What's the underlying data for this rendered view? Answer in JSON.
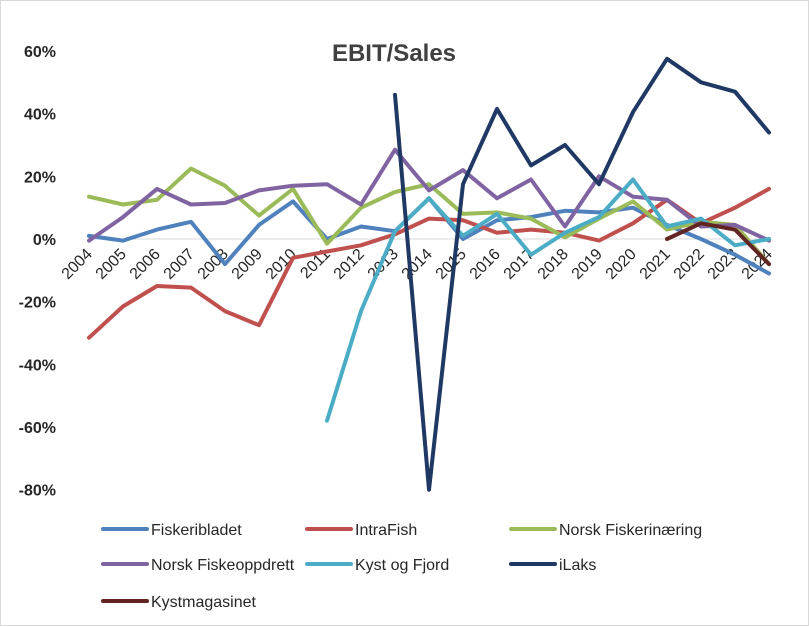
{
  "chart_data": {
    "type": "line",
    "title": "EBIT/Sales",
    "xlabel": "",
    "ylabel": "",
    "x": [
      "2004",
      "2005",
      "2006",
      "2007",
      "2008",
      "2009",
      "2010",
      "2011",
      "2012",
      "2013",
      "2014",
      "2015",
      "2016",
      "2017",
      "2018",
      "2019",
      "2020",
      "2021",
      "2022",
      "2023",
      "2024"
    ],
    "y_ticks": [
      "60%",
      "40%",
      "20%",
      "0%",
      "-20%",
      "-40%",
      "-60%",
      "-80%"
    ],
    "y_tick_values": [
      60,
      40,
      20,
      0,
      -20,
      -40,
      -60,
      -80
    ],
    "ylim": [
      -80,
      60
    ],
    "y_unit": "%",
    "grid": false,
    "legend_position": "bottom",
    "series": [
      {
        "name": "Fiskeribladet",
        "color": "#4f81bd",
        "values": [
          1,
          -0.5,
          3,
          5.5,
          -8,
          4.5,
          12,
          0,
          4,
          2.5,
          13,
          0,
          6,
          7,
          9,
          8.5,
          10,
          4.5,
          0,
          -5,
          -11
        ]
      },
      {
        "name": "IntraFish",
        "color": "#c0504d",
        "values": [
          -31.5,
          -21.5,
          -15,
          -15.5,
          -23,
          -27.5,
          -6,
          -4,
          -2,
          1.5,
          6.5,
          6,
          2,
          3,
          2,
          -0.5,
          5,
          12.5,
          5,
          10,
          16
        ]
      },
      {
        "name": "Norsk Fiskerinæring",
        "color": "#9bbb59",
        "values": [
          13.5,
          11,
          12.5,
          22.5,
          17,
          7.5,
          16,
          -1.5,
          10,
          15,
          17.5,
          8,
          8.5,
          6.5,
          0.5,
          6.5,
          12,
          3,
          5.5,
          4.5,
          -8
        ]
      },
      {
        "name": "Norsk Fiskeoppdrett",
        "color": "#8064a2",
        "values": [
          -0.5,
          7,
          16,
          11,
          11.5,
          15.5,
          17,
          17.5,
          11,
          28.5,
          15.5,
          22,
          13,
          19,
          4,
          20,
          13.5,
          12.5,
          4,
          4.5,
          -0.5
        ]
      },
      {
        "name": "Kyst og Fjord",
        "color": "#4bacc6",
        "values": [
          null,
          null,
          null,
          null,
          null,
          null,
          null,
          -58,
          -23,
          2.5,
          13,
          1,
          8,
          -5,
          2,
          7,
          19,
          4,
          6.5,
          -2,
          0
        ]
      },
      {
        "name": "iLaks",
        "color": "#1f3864",
        "values": [
          null,
          null,
          null,
          null,
          null,
          null,
          null,
          null,
          null,
          46,
          -80,
          17.5,
          41.5,
          23.5,
          30,
          17.5,
          40.5,
          57.5,
          50,
          47,
          34
        ]
      },
      {
        "name": "Kystmagasinet",
        "color": "#632523",
        "values": [
          null,
          null,
          null,
          null,
          null,
          null,
          null,
          null,
          null,
          null,
          null,
          null,
          null,
          null,
          null,
          null,
          null,
          0,
          5,
          3,
          -8
        ]
      }
    ]
  }
}
